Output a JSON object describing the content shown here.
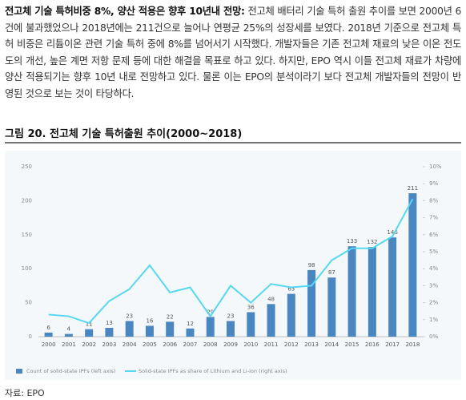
{
  "document": {
    "lead": "전고체 기술 특허비중 8%, 양산 적용은 향후 10년내 전망:",
    "body": "전고체 배터리 기술 특허 출원 추이를 보면 2000년 6건에 불과했었으나 2018년에는 211건으로 늘어나 연평균 25%의 성장세를 보였다. 2018년 기준으로 전고체 특허 비중은 리튬이온 관련 기술 특허 중에 8%를 넘어서기 시작했다. 개발자들은 기존 전고체 재료의 낮은 이온 전도도의 개선, 높은 계면 저항 문제 등에 대한 해결을 목표로 하고 있다. 하지만, EPO 역시 이들 전고체 재료가 차량에 양산 적용되기는 향후 10년 내로 전망하고 있다. 물론 이는 EPO의 분석이라기 보다 전고체 개발자들의 전망이 반영된 것으로 보는 것이 타당하다.",
    "source": "자료: EPO"
  },
  "chart_data": {
    "type": "combo",
    "title": "그림 20. 전고체 기술 특허출원 추이(2000~2018)",
    "categories": [
      "2000",
      "2001",
      "2002",
      "2003",
      "2004",
      "2005",
      "2006",
      "2007",
      "2008",
      "2009",
      "2010",
      "2011",
      "2012",
      "2013",
      "2014",
      "2015",
      "2016",
      "2017",
      "2018"
    ],
    "series": [
      {
        "name": "Count of solid-state IPFs (left axis)",
        "type": "bar",
        "color": "#4a86c0",
        "values": [
          6,
          4,
          11,
          13,
          23,
          16,
          22,
          12,
          29,
          23,
          36,
          48,
          63,
          98,
          87,
          133,
          132,
          146,
          211
        ]
      },
      {
        "name": "Solid-state IPFs as share of Lithium and Li-ion (right axis)",
        "type": "line",
        "axis": "y2",
        "color": "#55d8f2",
        "values": [
          1.3,
          1.2,
          0.8,
          2.1,
          2.8,
          4.2,
          2.6,
          2.9,
          1.2,
          3.0,
          2.0,
          3.1,
          2.9,
          3.0,
          4.5,
          5.2,
          5.2,
          5.9,
          8.1
        ]
      }
    ],
    "ylim": [
      0,
      250
    ],
    "yticks": [
      0,
      50,
      100,
      150,
      200,
      250
    ],
    "y2lim": [
      0,
      10
    ],
    "y2ticks": [
      {
        "value": 0,
        "label": "0%"
      },
      {
        "value": 1,
        "label": "1%"
      },
      {
        "value": 2,
        "label": "2%"
      },
      {
        "value": 3,
        "label": "3%"
      },
      {
        "value": 4,
        "label": "4%"
      },
      {
        "value": 5,
        "label": "5%"
      },
      {
        "value": 6,
        "label": "6%"
      },
      {
        "value": 7,
        "label": "7%"
      },
      {
        "value": 8,
        "label": "8%"
      },
      {
        "value": 9,
        "label": "9%"
      },
      {
        "value": 10,
        "label": "10%"
      }
    ],
    "grid": false
  }
}
